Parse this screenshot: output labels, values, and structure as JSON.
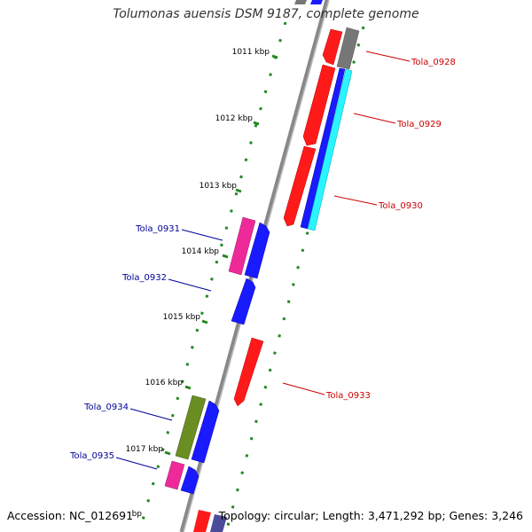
{
  "title": "Tolumonas auensis DSM 9187, complete genome",
  "accession": "Accession: NC_012691",
  "topology": "Topology: circular; Length: 3,471,292 bp; Genes: 3,246",
  "kbp_labels": [
    "1011 kbp",
    "1012 kbp",
    "1013 kbp",
    "1014 kbp",
    "1015 kbp",
    "1016 kbp",
    "1017 kbp"
  ],
  "partial_kbp_label": "bp",
  "forward_gene_labels": [
    "Tola_0928",
    "Tola_0929",
    "Tola_0930",
    "Tola_0933"
  ],
  "reverse_gene_labels": [
    "Tola_0931",
    "Tola_0932",
    "Tola_0934",
    "Tola_0935"
  ],
  "colors": {
    "forward_label": "#cc0000",
    "reverse_label": "#000099",
    "backbone": "#888888",
    "tick": "#228822",
    "red": "#ff1a1a",
    "blue": "#1a1aff",
    "cyan": "#2af4ff",
    "magenta": "#ee2a9a",
    "olive": "#6b8e23",
    "gray": "#777777",
    "slate": "#4b4b9a"
  }
}
